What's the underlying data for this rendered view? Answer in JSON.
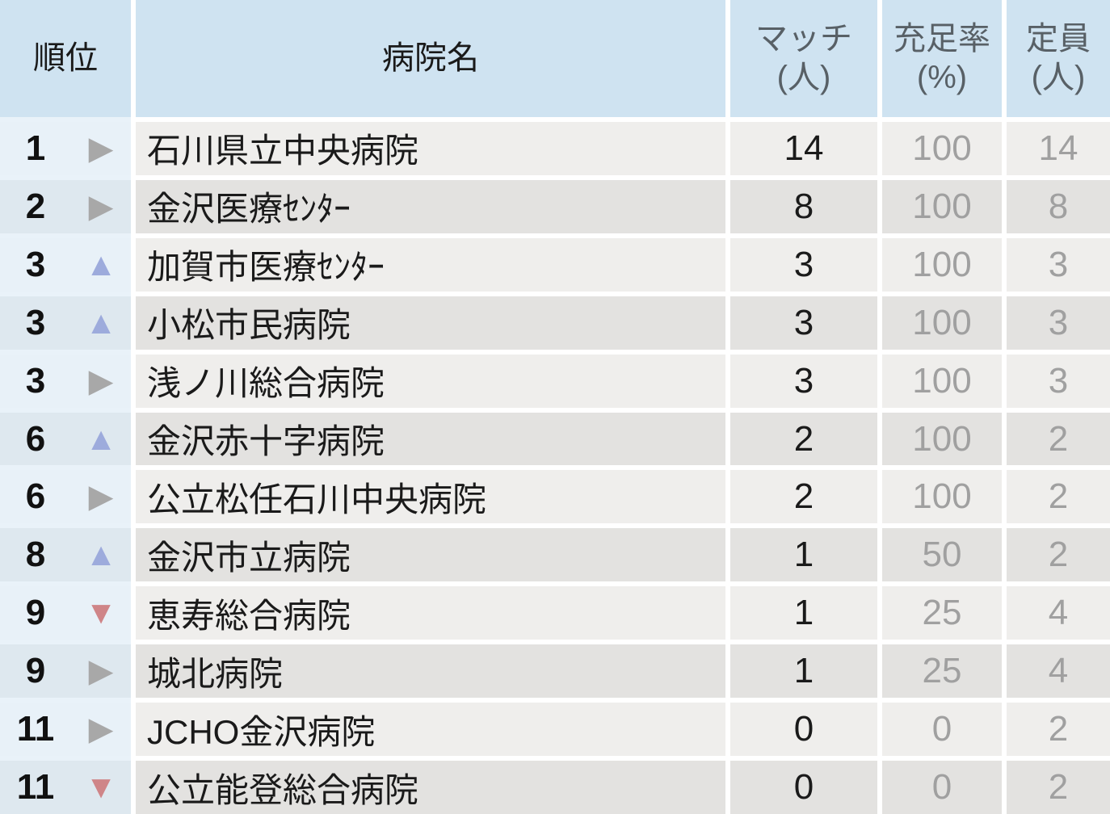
{
  "chart_data": {
    "type": "table",
    "columns": [
      {
        "id": "rank",
        "label": "順位"
      },
      {
        "id": "hospital",
        "label": "病院名"
      },
      {
        "id": "match",
        "label": "マッチ\n(人)"
      },
      {
        "id": "fill_rate",
        "label": "充足率\n(%)"
      },
      {
        "id": "capacity",
        "label": "定員\n(人)"
      }
    ],
    "rows": [
      {
        "rank": "1",
        "trend": "flat",
        "hospital": "石川県立中央病院",
        "match": "14",
        "fill_rate": "100",
        "capacity": "14"
      },
      {
        "rank": "2",
        "trend": "flat",
        "hospital": "金沢医療ｾﾝﾀｰ",
        "match": "8",
        "fill_rate": "100",
        "capacity": "8"
      },
      {
        "rank": "3",
        "trend": "up",
        "hospital": "加賀市医療ｾﾝﾀｰ",
        "match": "3",
        "fill_rate": "100",
        "capacity": "3"
      },
      {
        "rank": "3",
        "trend": "up",
        "hospital": "小松市民病院",
        "match": "3",
        "fill_rate": "100",
        "capacity": "3"
      },
      {
        "rank": "3",
        "trend": "flat",
        "hospital": "浅ノ川総合病院",
        "match": "3",
        "fill_rate": "100",
        "capacity": "3"
      },
      {
        "rank": "6",
        "trend": "up",
        "hospital": "金沢赤十字病院",
        "match": "2",
        "fill_rate": "100",
        "capacity": "2"
      },
      {
        "rank": "6",
        "trend": "flat",
        "hospital": "公立松任石川中央病院",
        "match": "2",
        "fill_rate": "100",
        "capacity": "2"
      },
      {
        "rank": "8",
        "trend": "up",
        "hospital": "金沢市立病院",
        "match": "1",
        "fill_rate": "50",
        "capacity": "2"
      },
      {
        "rank": "9",
        "trend": "down",
        "hospital": "恵寿総合病院",
        "match": "1",
        "fill_rate": "25",
        "capacity": "4"
      },
      {
        "rank": "9",
        "trend": "flat",
        "hospital": "城北病院",
        "match": "1",
        "fill_rate": "25",
        "capacity": "4"
      },
      {
        "rank": "11",
        "trend": "flat",
        "hospital": "JCHO金沢病院",
        "match": "0",
        "fill_rate": "0",
        "capacity": "2"
      },
      {
        "rank": "11",
        "trend": "down",
        "hospital": "公立能登総合病院",
        "match": "0",
        "fill_rate": "0",
        "capacity": "2"
      }
    ]
  },
  "icons": {
    "up-triangle-icon": "▲",
    "right-triangle-icon": "▶",
    "down-triangle-icon": "▼"
  },
  "colors": {
    "header_bg": "#cfe3f1",
    "header_text": "#1a1a1a",
    "header_muted_text": "#586066",
    "row_light_bg": "#efeeec",
    "row_dark_bg": "#e3e2e0",
    "rank_col_light_bg": "#e8f1f8",
    "rank_col_dark_bg": "#dee8ef",
    "rank_col_gap": "#e9f2f9",
    "trend_up": "#9dabdc",
    "trend_flat": "#a8a8a8",
    "trend_down": "#cf8588",
    "value_text": "#1a1a1a",
    "muted_value_text": "#a0a0a0"
  }
}
